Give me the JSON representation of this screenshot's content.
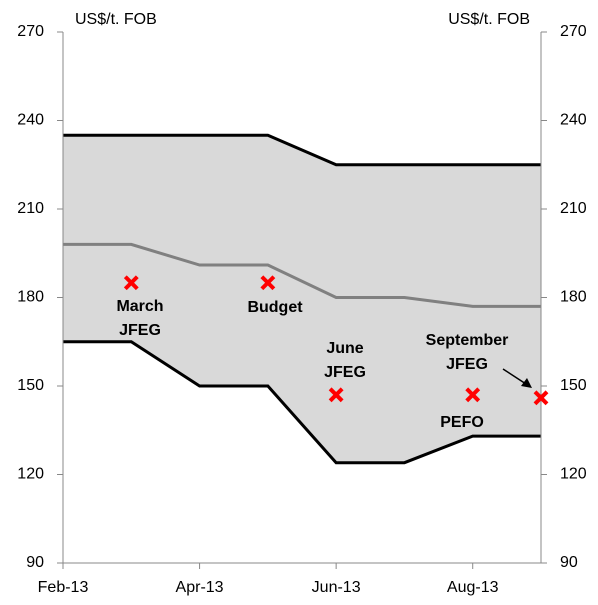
{
  "chart_data": {
    "type": "line",
    "categories": [
      "Feb-13",
      null,
      "Apr-13",
      null,
      "Jun-13",
      null,
      "Aug-13",
      null
    ],
    "series": [
      {
        "color": "#000000",
        "values": [
          235,
          235,
          235,
          235,
          225,
          225,
          225,
          225
        ]
      },
      {
        "color": "#808080",
        "values": [
          198,
          198,
          191,
          191,
          180,
          180,
          177,
          177
        ]
      },
      {
        "color": "#000000",
        "values": [
          165,
          165,
          150,
          150,
          124,
          124,
          133,
          133
        ]
      }
    ],
    "band_color": "#d9d9d9",
    "markers": {
      "color": "#ff0000",
      "values": [
        null,
        185,
        null,
        185,
        147,
        null,
        147,
        146
      ],
      "labels": [
        null,
        [
          "March",
          "JFEG"
        ],
        null,
        [
          "Budget"
        ],
        [
          "June",
          "JFEG"
        ],
        null,
        [
          "PEFO"
        ],
        [
          "September",
          "JFEG"
        ]
      ]
    },
    "ylabel": "US$/t. FOB",
    "y2label": "US$/t. FOB",
    "ylim": [
      90,
      270
    ],
    "yticks": [
      90,
      120,
      150,
      180,
      210,
      240,
      270
    ],
    "y2lim": [
      90,
      270
    ],
    "y2ticks": [
      90,
      120,
      150,
      180,
      210,
      240,
      270
    ]
  }
}
